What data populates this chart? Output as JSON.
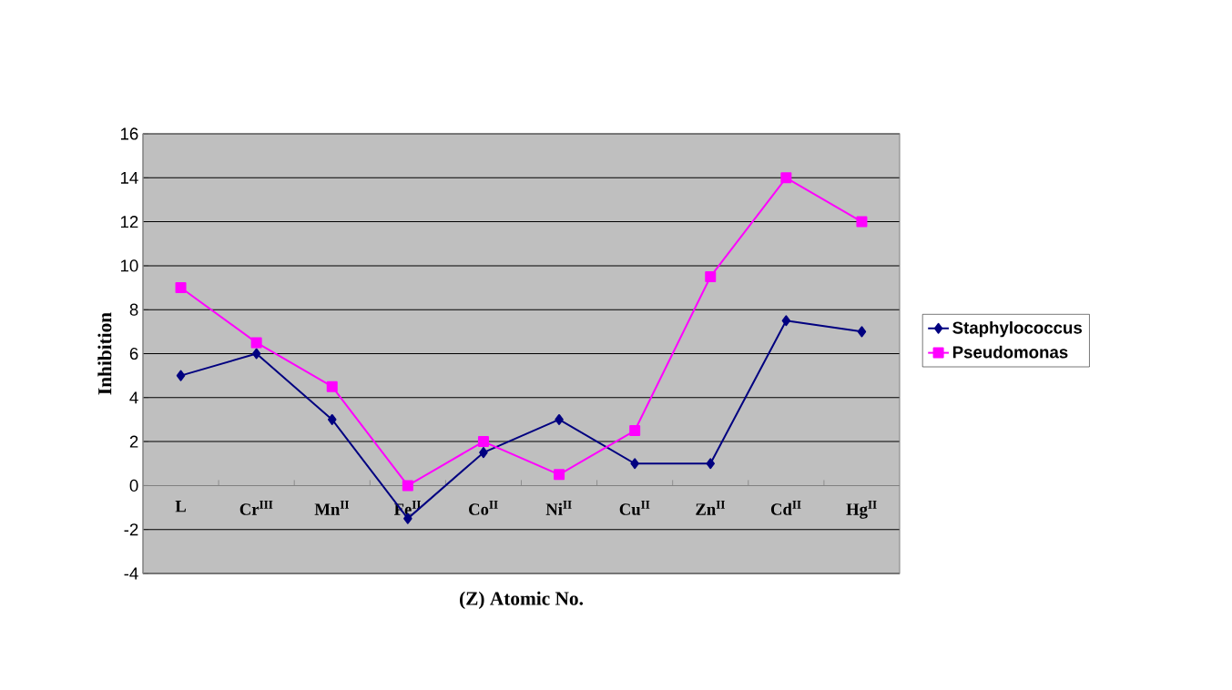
{
  "chart_data": {
    "type": "line",
    "xlabel": "(Z) Atomic No.",
    "ylabel": "Inhibition",
    "categories": [
      "L",
      "Cr$^{III}$",
      "Mn$^{II}$",
      "Fe$^{II}$",
      "Co$^{II}$",
      "Ni$^{II}$",
      "Cu$^{II}$",
      "Zn$^{II}$",
      "Cd$^{II}$",
      "Hg$^{II}$"
    ],
    "series": [
      {
        "name": "Staphylococcus",
        "color": "#000080",
        "marker": "diamond",
        "values": [
          5,
          6,
          3,
          -1.5,
          1.5,
          3,
          1,
          1,
          7.5,
          7
        ]
      },
      {
        "name": "Pseudomonas",
        "color": "#ff00ff",
        "marker": "square",
        "values": [
          9,
          6.5,
          4.5,
          0,
          2,
          0.5,
          2.5,
          9.5,
          14,
          12
        ]
      }
    ],
    "ylim": [
      -4,
      16
    ],
    "yticks": [
      -4,
      -2,
      0,
      2,
      4,
      6,
      8,
      10,
      12,
      14,
      16
    ],
    "grid": "y",
    "legend": "right"
  }
}
